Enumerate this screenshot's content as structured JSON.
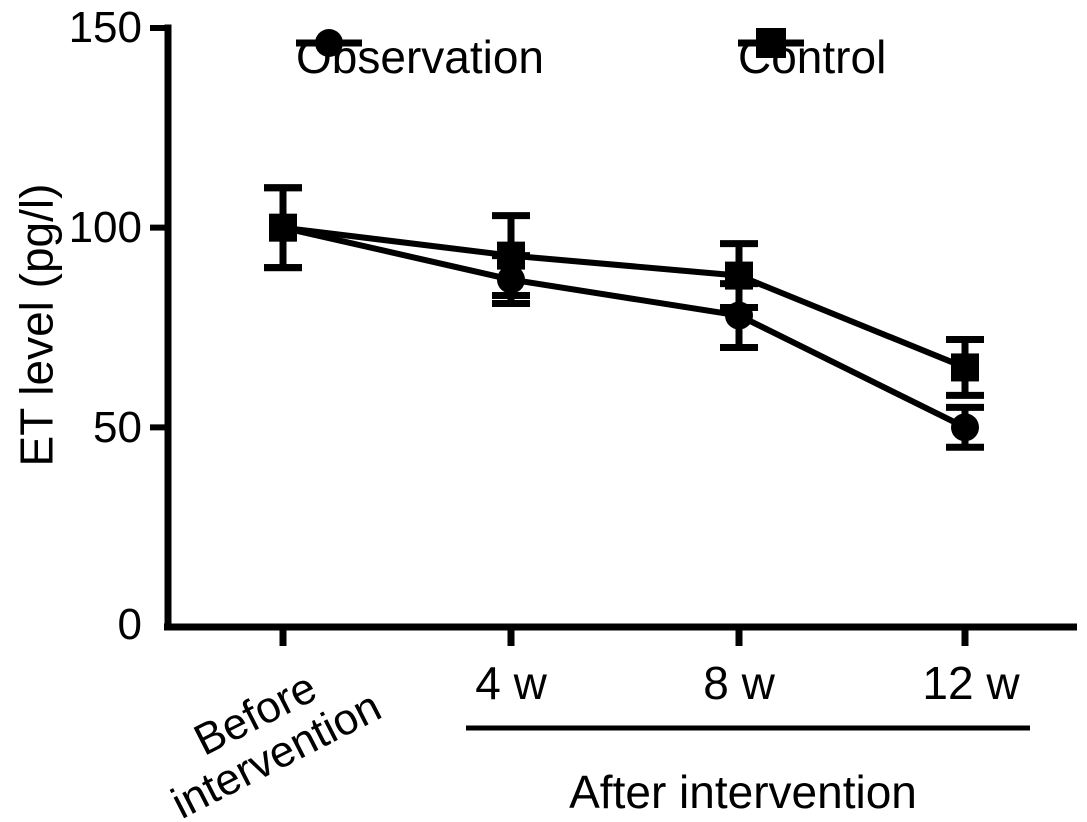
{
  "figure": {
    "background": "#ffffff",
    "ink": "#000000"
  },
  "chart_data": {
    "type": "line",
    "title": "",
    "ylabel": "ET level (pg/l)",
    "xlabel": "",
    "x_group_label": "After intervention",
    "categories": [
      "Before intervention",
      "4 w",
      "8 w",
      "12 w"
    ],
    "grouped_categories": [
      "4 w",
      "8 w",
      "12 w"
    ],
    "ylim": [
      0,
      150
    ],
    "yticks": [
      0,
      50,
      100,
      150
    ],
    "grid": false,
    "legend_position": "top",
    "error_bars": true,
    "series": [
      {
        "name": "Observation",
        "marker": "circle",
        "color": "#000000",
        "values": [
          100,
          87,
          78,
          50
        ],
        "errors": [
          10,
          6,
          8,
          5
        ]
      },
      {
        "name": "Control",
        "marker": "square",
        "color": "#000000",
        "values": [
          100,
          93,
          88,
          65
        ],
        "errors": [
          10,
          10,
          8,
          7
        ]
      }
    ]
  }
}
